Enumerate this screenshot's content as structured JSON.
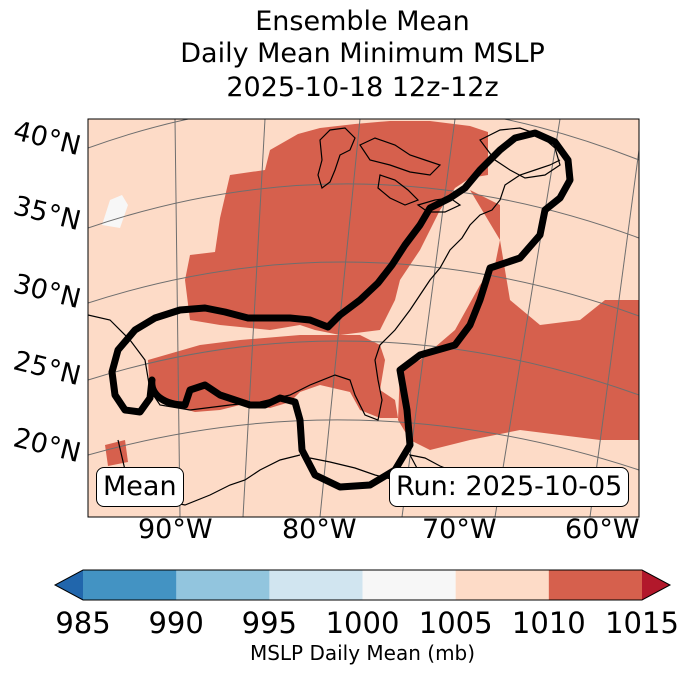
{
  "title": {
    "line1": "Ensemble Mean",
    "line2": "Daily Mean Minimum MSLP",
    "line3": "2025-10-18 12z-12z"
  },
  "map": {
    "lat_labels": [
      "40°N",
      "35°N",
      "30°N",
      "25°N",
      "20°N"
    ],
    "lon_labels": [
      "90°W",
      "80°W",
      "70°W",
      "60°W"
    ],
    "stat_label": "Mean",
    "run_label": "Run: 2025-10-05"
  },
  "colorbar": {
    "ticks": [
      "985",
      "990",
      "995",
      "1000",
      "1005",
      "1010",
      "1015"
    ],
    "colors": [
      "#4393c3",
      "#92c5de",
      "#d1e5f0",
      "#f7f7f7",
      "#fddbc7",
      "#d6604d"
    ],
    "under_color": "#2166ac",
    "over_color": "#b2182b",
    "label": "MSLP Daily Mean (mb)"
  }
}
